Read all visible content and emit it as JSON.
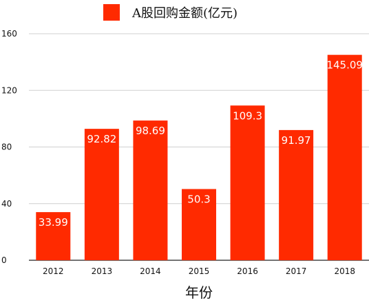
{
  "chart_data": {
    "type": "bar",
    "categories": [
      "2012",
      "2013",
      "2014",
      "2015",
      "2016",
      "2017",
      "2018"
    ],
    "series": [
      {
        "name": "A股回购金额(亿元)",
        "values": [
          33.99,
          92.82,
          98.69,
          50.3,
          109.3,
          91.97,
          145.09
        ],
        "labels": [
          "33.99",
          "92.82",
          "98.69",
          "50.3",
          "109.3",
          "91.97",
          "145.09"
        ],
        "color": "#ff2a00"
      }
    ],
    "xlabel": "年份",
    "ylabel": "",
    "ylim": [
      0,
      160
    ],
    "yticks": [
      "0",
      "40",
      "80",
      "120",
      "160"
    ],
    "grid": true,
    "legend_position": "top-center"
  }
}
